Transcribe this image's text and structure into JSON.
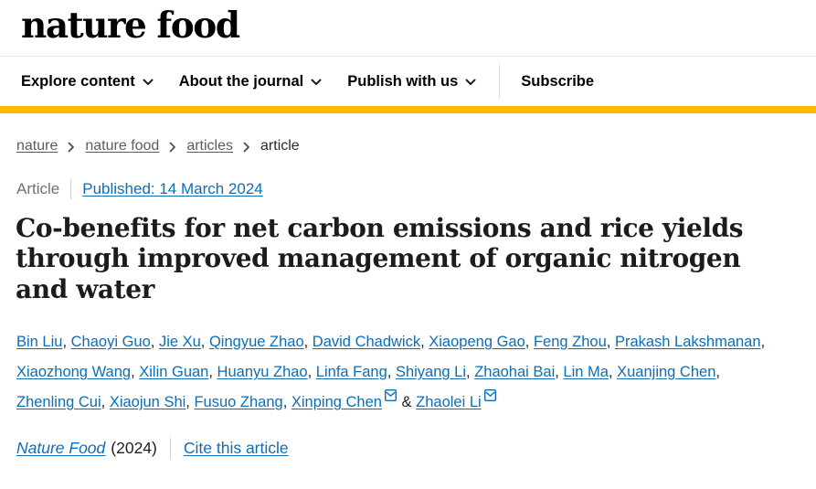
{
  "header": {
    "logo": "nature food",
    "nav_items": [
      {
        "label": "Explore content"
      },
      {
        "label": "About the journal"
      },
      {
        "label": "Publish with us"
      }
    ],
    "subscribe_label": "Subscribe"
  },
  "breadcrumb": {
    "items": [
      "nature",
      "nature food",
      "articles",
      "article"
    ]
  },
  "article": {
    "type_label": "Article",
    "published_link": "Published: 14 March 2024",
    "title": "Co-benefits for net carbon emissions and rice yields through improved management of organic nitrogen and water",
    "title_lines": [
      "Co-benefits for net carbon emissions and rice yields",
      "through improved management of organic nitrogen",
      "and water"
    ],
    "authors": [
      {
        "name": "Bin Liu"
      },
      {
        "name": "Chaoyi Guo"
      },
      {
        "name": "Jie Xu"
      },
      {
        "name": "Qingyue Zhao"
      },
      {
        "name": "David Chadwick"
      },
      {
        "name": "Xiaopeng Gao"
      },
      {
        "name": "Feng Zhou"
      },
      {
        "name": "Prakash Lakshmanan"
      },
      {
        "name": "Xiaozhong Wang"
      },
      {
        "name": "Xilin Guan"
      },
      {
        "name": "Huanyu Zhao"
      },
      {
        "name": "Linfa Fang"
      },
      {
        "name": "Shiyang Li"
      },
      {
        "name": "Zhaohai Bai"
      },
      {
        "name": "Lin Ma"
      },
      {
        "name": "Xuanjing Chen"
      },
      {
        "name": "Zhenling Cui"
      },
      {
        "name": "Xiaojun Shi"
      },
      {
        "name": "Fusuo Zhang"
      },
      {
        "name": "Xinping Chen",
        "email": true
      },
      {
        "name": "Zhaolei Li",
        "email": true
      }
    ],
    "separator": ", ",
    "last_separator": " & ",
    "journal_name": "Nature Food",
    "year_text": "(2024)",
    "cite_label": "Cite this article"
  },
  "icons": {
    "chevron_down": "chevron-down-icon",
    "chevron_right": "chevron-right-icon",
    "email": "email-envelope-icon"
  },
  "colors": {
    "link_blue": "#0d6eb6",
    "brand_yellow": "#ffb800",
    "text_dark": "#1e1e1e",
    "breadcrumb_gray": "#5c5c5c"
  }
}
